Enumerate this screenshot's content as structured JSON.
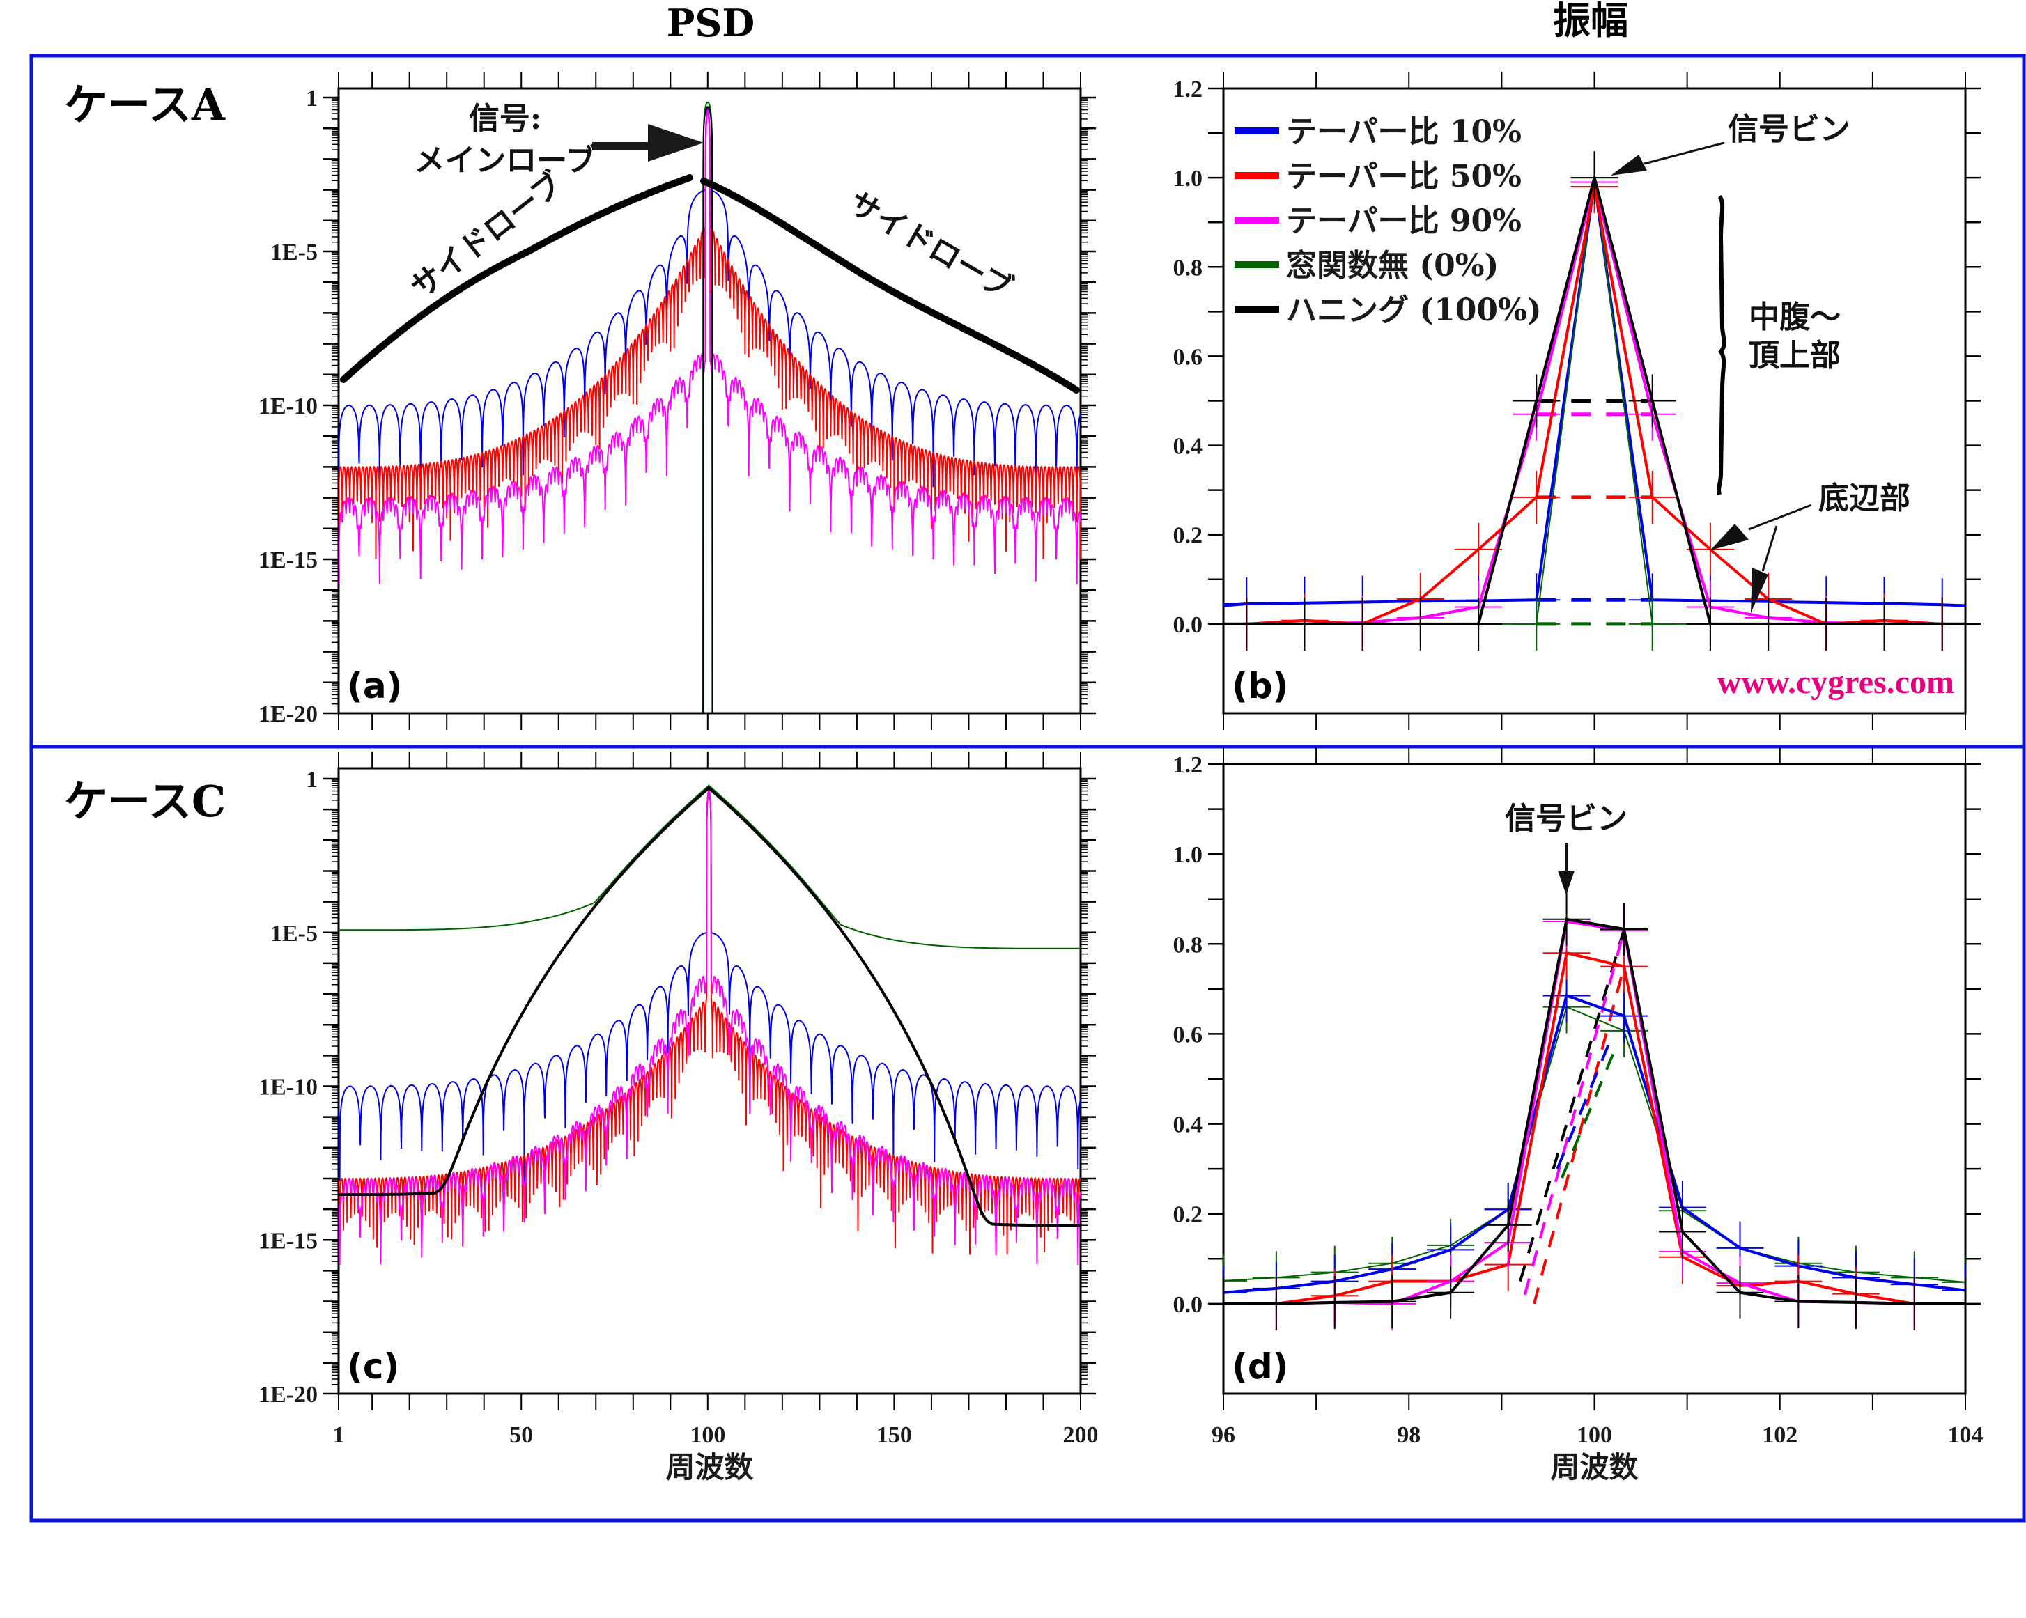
{
  "columns": {
    "left_title": "PSD",
    "right_title": "振幅"
  },
  "cases": [
    {
      "label": "ケースA"
    },
    {
      "label": "ケースC"
    }
  ],
  "colors": {
    "frame": "#0a14e0",
    "taper10": "#0000e6",
    "taper50": "#ff0000",
    "taper90": "#ff00ff",
    "rect": "#006400",
    "hann": "#000000",
    "url": "#e6007e"
  },
  "legend": [
    {
      "key": "taper10",
      "label": "テーパー比 10%"
    },
    {
      "key": "taper50",
      "label": "テーパー比 50%"
    },
    {
      "key": "taper90",
      "label": "テーパー比 90%"
    },
    {
      "key": "rect",
      "label": "窓関数無 (0%)"
    },
    {
      "key": "hann",
      "label": "ハニング (100%)"
    }
  ],
  "annotations": {
    "signal_mainlobe_line1": "信号:",
    "signal_mainlobe_line2": "メインローブ",
    "sidelobe_left": "サイドローブ",
    "sidelobe_right": "サイドローブ",
    "signal_bin_b": "信号ビン",
    "mid_top_line1": "中腹～",
    "mid_top_line2": "頂上部",
    "base": "底辺部",
    "signal_bin_d": "信号ビン",
    "url": "www.cygres.com"
  },
  "chart_data": [
    {
      "id": "a",
      "panel_tag": "(a)",
      "type": "line",
      "title": "PSD",
      "xlabel": "",
      "ylabel": "",
      "yscale": "log",
      "xlim": [
        1,
        200
      ],
      "ylim": [
        1e-20,
        1
      ],
      "yticks": [
        "1",
        "1E-5",
        "1E-10",
        "1E-15",
        "1E-20"
      ],
      "xticks": [],
      "signal_frequency": 100,
      "series": [
        {
          "key": "taper10",
          "name": "テーパー比 10%",
          "mainlobe_peak": 0.5,
          "sidelobe_envelope": {
            "at_1": 1e-10,
            "near_peak": 0.001
          },
          "sidelobe_period_bins": 5.5
        },
        {
          "key": "taper50",
          "name": "テーパー比 50%",
          "mainlobe_peak": 0.4,
          "sidelobe_envelope": {
            "at_1": 1e-12,
            "near_peak": 0.0001
          },
          "floor": {
            "at_1": 1e-15,
            "near_peak": 1e-08
          }
        },
        {
          "key": "taper90",
          "name": "テーパー比 90%",
          "mainlobe_peak": 0.4,
          "sidelobe_envelope": {
            "at_1": 1e-13,
            "near_peak": 1e-08
          }
        },
        {
          "key": "rect",
          "name": "窓関数無 (0%)",
          "mainlobe_peak": 0.7,
          "sidelobes": "below 1E-20"
        },
        {
          "key": "hann",
          "name": "ハニング (100%)",
          "mainlobe_peak": 0.5,
          "sidelobes": "below 1E-20"
        }
      ]
    },
    {
      "id": "b",
      "panel_tag": "(b)",
      "type": "line",
      "title": "振幅",
      "xlim": [
        96,
        104
      ],
      "ylim": [
        -0.2,
        1.2
      ],
      "yticks": [
        "0.0",
        "0.2",
        "0.4",
        "0.6",
        "0.8",
        "1.0",
        "1.2"
      ],
      "x": [
        96.25,
        96.875,
        97.5,
        98.125,
        98.75,
        99.375,
        100,
        100.625,
        101.25,
        101.875,
        102.5,
        103.125,
        103.75
      ],
      "series": [
        {
          "key": "taper10",
          "name": "テーパー比 10%",
          "values": [
            0.045,
            0.047,
            0.049,
            0.051,
            0.052,
            0.054,
            0.99,
            0.054,
            0.052,
            0.05,
            0.048,
            0.046,
            0.043
          ],
          "edge_values": [
            0.041,
            0.041
          ]
        },
        {
          "key": "taper50",
          "name": "テーパー比 50%",
          "values": [
            0.0,
            0.008,
            0.0,
            0.056,
            0.167,
            0.284,
            0.98,
            0.284,
            0.167,
            0.056,
            0.0,
            0.008,
            0.0
          ],
          "edge_values": [
            0,
            0
          ]
        },
        {
          "key": "taper90",
          "name": "テーパー比 90%",
          "values": [
            0.0,
            0.0,
            0.003,
            0.014,
            0.038,
            0.47,
            0.99,
            0.47,
            0.038,
            0.014,
            0.003,
            0.0,
            0.0
          ],
          "edge_values": [
            0,
            0
          ]
        },
        {
          "key": "rect",
          "name": "窓関数無 (0%)",
          "values": [
            0,
            0,
            0,
            0,
            0,
            0,
            1.0,
            0,
            0,
            0,
            0,
            0,
            0
          ],
          "edge_values": [
            0,
            0
          ]
        },
        {
          "key": "hann",
          "name": "ハニング (100%)",
          "values": [
            0,
            0,
            0,
            0,
            0,
            0.5,
            1.0,
            0.5,
            0,
            0,
            0,
            0,
            0
          ],
          "edge_values": [
            0,
            0
          ]
        }
      ],
      "dashed_levels": [
        {
          "key": "hann",
          "value": 0.5
        },
        {
          "key": "taper90",
          "value": 0.47
        },
        {
          "key": "taper50",
          "value": 0.284
        },
        {
          "key": "taper10",
          "value": 0.054
        },
        {
          "key": "rect",
          "value": 0.0
        }
      ]
    },
    {
      "id": "c",
      "panel_tag": "(c)",
      "type": "line",
      "xlabel": "周波数",
      "yscale": "log",
      "xlim": [
        1,
        200
      ],
      "ylim": [
        1e-20,
        1
      ],
      "yticks": [
        "1",
        "1E-5",
        "1E-10",
        "1E-15",
        "1E-20"
      ],
      "xticks": [
        "1",
        "50",
        "100",
        "150",
        "200"
      ],
      "signal_frequency": 100.3,
      "series": [
        {
          "key": "rect",
          "name": "窓関数無 (0%)",
          "peak": 0.6,
          "at_1": 1.2e-05,
          "at_200": 3e-06
        },
        {
          "key": "taper10",
          "name": "テーパー比 10%",
          "peak": 0.5,
          "sidelobe_envelope": {
            "at_1": 1e-10,
            "near_peak": 1e-05
          }
        },
        {
          "key": "taper50",
          "name": "テーパー比 50%",
          "peak": 0.5,
          "sidelobe_envelope": {
            "at_1": 1e-13,
            "near_peak": 1e-07
          }
        },
        {
          "key": "taper90",
          "name": "テーパー比 90%",
          "peak": 0.5,
          "sidelobe_envelope": {
            "at_1": 1e-13,
            "near_peak": 1e-06
          }
        },
        {
          "key": "hann",
          "name": "ハニング (100%)",
          "peak": 0.5,
          "at_1": 3e-14,
          "at_200": 3e-15
        }
      ]
    },
    {
      "id": "d",
      "panel_tag": "(d)",
      "type": "line",
      "xlabel": "周波数",
      "xlim": [
        96,
        104
      ],
      "ylim": [
        -0.2,
        1.2
      ],
      "yticks": [
        "0.0",
        "0.2",
        "0.4",
        "0.6",
        "0.8",
        "1.0",
        "1.2"
      ],
      "xticks": [
        "96",
        "98",
        "100",
        "102",
        "104"
      ],
      "x": [
        96,
        96.57,
        97.2,
        97.82,
        98.45,
        99.07,
        99.7,
        100.32,
        100.95,
        101.57,
        102.2,
        102.82,
        103.45,
        104
      ],
      "series": [
        {
          "key": "rect",
          "name": "窓関数無 (0%)",
          "values": [
            0.051,
            0.058,
            0.07,
            0.09,
            0.13,
            0.21,
            0.66,
            0.607,
            0.207,
            0.124,
            0.09,
            0.07,
            0.058,
            0.048
          ]
        },
        {
          "key": "taper10",
          "name": "テーパー比 10%",
          "values": [
            0.025,
            0.034,
            0.05,
            0.077,
            0.12,
            0.21,
            0.685,
            0.64,
            0.214,
            0.124,
            0.084,
            0.058,
            0.043,
            0.03
          ]
        },
        {
          "key": "taper50",
          "name": "テーパー比 50%",
          "values": [
            0,
            0,
            0.018,
            0.05,
            0.05,
            0.087,
            0.78,
            0.75,
            0.104,
            0.04,
            0.05,
            0.022,
            0.0,
            0.0
          ]
        },
        {
          "key": "taper90",
          "name": "テーパー比 90%",
          "values": [
            0,
            0,
            0.003,
            0.0,
            0.05,
            0.136,
            0.85,
            0.83,
            0.116,
            0.046,
            0.005,
            0.003,
            0.0,
            0.0
          ]
        },
        {
          "key": "hann",
          "name": "ハニング (100%)",
          "values": [
            0,
            0,
            0.003,
            0.005,
            0.025,
            0.175,
            0.855,
            0.833,
            0.16,
            0.025,
            0.005,
            0.003,
            0.0,
            0.0
          ]
        }
      ],
      "dashed_lines": [
        {
          "key": "hann",
          "from": [
            99.2,
            0.05
          ],
          "to": [
            100.32,
            0.833
          ]
        },
        {
          "key": "taper90",
          "from": [
            99.25,
            0.02
          ],
          "to": [
            100.32,
            0.83
          ]
        },
        {
          "key": "taper50",
          "from": [
            99.35,
            0.0
          ],
          "to": [
            100.32,
            0.75
          ]
        },
        {
          "key": "taper10",
          "from": [
            99.6,
            0.3
          ],
          "to": [
            100.2,
            0.6
          ]
        },
        {
          "key": "rect",
          "from": [
            99.65,
            0.28
          ],
          "to": [
            100.25,
            0.58
          ]
        }
      ]
    }
  ]
}
